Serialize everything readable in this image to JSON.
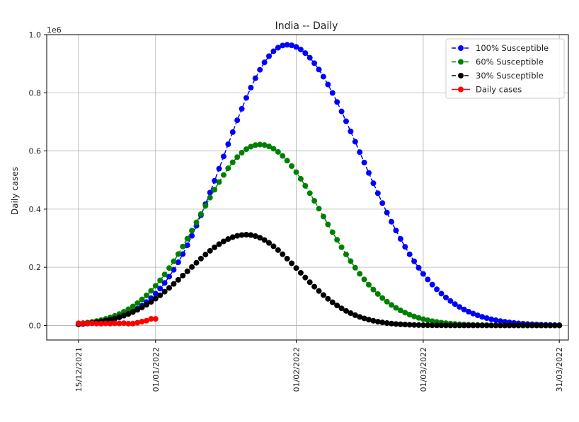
{
  "chart_data": {
    "type": "line",
    "title": "India -- Daily",
    "xlabel": "",
    "ylabel": "Daily cases",
    "y_offset_label": "1e6",
    "x_start": "2021-12-15",
    "x_end": "2022-03-31",
    "xlim": [
      "2021-12-08",
      "2022-04-02"
    ],
    "ylim": [
      -0.05,
      1.0
    ],
    "y_ticks": [
      0.0,
      0.2,
      0.4,
      0.6,
      0.8,
      1.0
    ],
    "y_tick_labels": [
      "0.0",
      "0.2",
      "0.4",
      "0.6",
      "0.8",
      "1.0"
    ],
    "x_ticks": [
      "2021-12-15",
      "2022-01-01",
      "2022-02-01",
      "2022-03-01",
      "2022-03-31"
    ],
    "x_tick_labels": [
      "15/12/2021",
      "01/01/2022",
      "01/02/2022",
      "01/03/2022",
      "31/03/2022"
    ],
    "grid": true,
    "legend_position": "top-right",
    "series": [
      {
        "name": "100% Susceptible",
        "color": "#0000ff",
        "style": "dashed",
        "peak_date": "2022-01-30",
        "peak": 0.965,
        "sigma_left": 13.9,
        "sigma_right": 16.3,
        "values_x_range": [
          "2021-12-15",
          "2022-03-31"
        ]
      },
      {
        "name": "60% Susceptible",
        "color": "#008000",
        "style": "dashed",
        "peak_date": "2022-01-24",
        "peak": 0.622,
        "sigma_left": 13.2,
        "sigma_right": 13.9,
        "values_x_range": [
          "2021-12-15",
          "2022-03-31"
        ]
      },
      {
        "name": "30% Susceptible",
        "color": "#000000",
        "style": "dashed",
        "peak_date": "2022-01-21",
        "peak": 0.312,
        "sigma_left": 12.8,
        "sigma_right": 11.5,
        "values_x_range": [
          "2021-12-15",
          "2022-03-31"
        ]
      },
      {
        "name": "Daily cases",
        "color": "#ff0000",
        "style": "solid",
        "x": [
          "2021-12-15",
          "2021-12-16",
          "2021-12-17",
          "2021-12-18",
          "2021-12-19",
          "2021-12-20",
          "2021-12-21",
          "2021-12-22",
          "2021-12-23",
          "2021-12-24",
          "2021-12-25",
          "2021-12-26",
          "2021-12-27",
          "2021-12-28",
          "2021-12-29",
          "2021-12-30",
          "2021-12-31",
          "2022-01-01"
        ],
        "values": [
          0.0075,
          0.0073,
          0.007,
          0.0074,
          0.0065,
          0.0062,
          0.0072,
          0.0065,
          0.0073,
          0.0071,
          0.0078,
          0.0063,
          0.0065,
          0.0092,
          0.0132,
          0.0164,
          0.0227,
          0.0227
        ]
      }
    ]
  }
}
